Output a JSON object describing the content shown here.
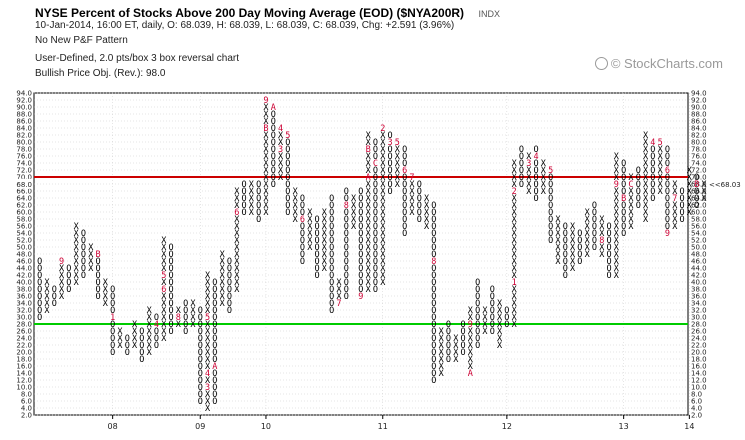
{
  "header": {
    "title": "NYSE Percent of Stocks Above 200 Day Moving Average (EOD) ($NYA200R)",
    "exchange": "INDX",
    "quote_line": "10-Jan-2014, 16:00 ET, daily, O: 68.039, H: 68.039, L: 68.039, C: 68.039, Chg: +2.591 (3.96%)",
    "pattern_line": "No New P&F Pattern",
    "settings_line": "User-Defined, 2.0 pts/box 3 box reversal chart",
    "objective_line": "Bullish Price Obj. (Rev.): 98.0",
    "watermark": "© StockCharts.com"
  },
  "colors": {
    "x_mark": "#000000",
    "o_mark": "#000000",
    "month_mark": "#cc0033",
    "overbought_line": "#cc0000",
    "oversold_line": "#00cc00",
    "grid": "#cccccc"
  },
  "chart_data": {
    "type": "point-and-figure",
    "box_size": 2.0,
    "reversal": 3,
    "ylim": [
      2,
      94
    ],
    "y_ticks": [
      2,
      4,
      6,
      8,
      10,
      12,
      14,
      16,
      18,
      20,
      22,
      24,
      26,
      28,
      30,
      32,
      34,
      36,
      38,
      40,
      42,
      44,
      46,
      48,
      50,
      52,
      54,
      56,
      58,
      60,
      62,
      64,
      66,
      68,
      70,
      72,
      74,
      76,
      78,
      80,
      82,
      84,
      86,
      88,
      90,
      92,
      94
    ],
    "x_tick_labels": [
      {
        "label": "08",
        "column": 10
      },
      {
        "label": "09",
        "column": 22
      },
      {
        "label": "10",
        "column": 31
      },
      {
        "label": "11",
        "column": 47
      },
      {
        "label": "12",
        "column": 64
      },
      {
        "label": "13",
        "column": 80
      },
      {
        "label": "14",
        "column": 89
      }
    ],
    "reference_lines": [
      {
        "name": "overbought",
        "value": 70
      },
      {
        "name": "oversold",
        "value": 28
      }
    ],
    "last_price": 68.039,
    "last_price_label": "68.0",
    "last_price_marker": "<<68.03",
    "columns": [
      {
        "type": "O",
        "high": 46,
        "low": 30
      },
      {
        "type": "X",
        "high": 40,
        "low": 32
      },
      {
        "type": "O",
        "high": 38,
        "low": 34
      },
      {
        "type": "X",
        "high": 46,
        "low": 36,
        "months": [
          {
            "value": 46,
            "label": "9"
          }
        ]
      },
      {
        "type": "O",
        "high": 44,
        "low": 38
      },
      {
        "type": "X",
        "high": 56,
        "low": 40
      },
      {
        "type": "O",
        "high": 54,
        "low": 42
      },
      {
        "type": "X",
        "high": 50,
        "low": 44
      },
      {
        "type": "O",
        "high": 48,
        "low": 36,
        "months": [
          {
            "value": 48,
            "label": "B"
          }
        ]
      },
      {
        "type": "X",
        "high": 40,
        "low": 34
      },
      {
        "type": "O",
        "high": 38,
        "low": 20,
        "months": [
          {
            "value": 30,
            "label": "1"
          }
        ]
      },
      {
        "type": "X",
        "high": 26,
        "low": 22
      },
      {
        "type": "O",
        "high": 24,
        "low": 20
      },
      {
        "type": "X",
        "high": 28,
        "low": 22
      },
      {
        "type": "O",
        "high": 26,
        "low": 18
      },
      {
        "type": "X",
        "high": 32,
        "low": 20
      },
      {
        "type": "O",
        "high": 30,
        "low": 22,
        "months": [
          {
            "value": 28,
            "label": "4"
          }
        ]
      },
      {
        "type": "X",
        "high": 52,
        "low": 24,
        "months": [
          {
            "value": 42,
            "label": "5"
          },
          {
            "value": 38,
            "label": "6"
          }
        ]
      },
      {
        "type": "O",
        "high": 50,
        "low": 26
      },
      {
        "type": "X",
        "high": 32,
        "low": 28,
        "months": [
          {
            "value": 30,
            "label": "8"
          }
        ]
      },
      {
        "type": "O",
        "high": 34,
        "low": 26
      },
      {
        "type": "X",
        "high": 34,
        "low": 28
      },
      {
        "type": "O",
        "high": 32,
        "low": 6
      },
      {
        "type": "X",
        "high": 42,
        "low": 4,
        "months": [
          {
            "value": 10,
            "label": "3"
          },
          {
            "value": 14,
            "label": "4"
          },
          {
            "value": 30,
            "label": "5"
          }
        ]
      },
      {
        "type": "O",
        "high": 40,
        "low": 6,
        "months": [
          {
            "value": 16,
            "label": "A"
          }
        ]
      },
      {
        "type": "X",
        "high": 48,
        "low": 34
      },
      {
        "type": "O",
        "high": 46,
        "low": 32
      },
      {
        "type": "X",
        "high": 66,
        "low": 38,
        "months": [
          {
            "value": 60,
            "label": "6"
          }
        ]
      },
      {
        "type": "O",
        "high": 68,
        "low": 60,
        "months": [
          {
            "value": 70,
            "label": "7"
          }
        ]
      },
      {
        "type": "X",
        "high": 68,
        "low": 60
      },
      {
        "type": "O",
        "high": 68,
        "low": 58
      },
      {
        "type": "X",
        "high": 92,
        "low": 60,
        "months": [
          {
            "value": 92,
            "label": "9"
          },
          {
            "value": 84,
            "label": "B"
          }
        ]
      },
      {
        "type": "O",
        "high": 90,
        "low": 68,
        "months": [
          {
            "value": 90,
            "label": "A"
          }
        ]
      },
      {
        "type": "X",
        "high": 84,
        "low": 70,
        "months": [
          {
            "value": 84,
            "label": "4"
          },
          {
            "value": 78,
            "label": "3"
          }
        ]
      },
      {
        "type": "O",
        "high": 82,
        "low": 60,
        "months": [
          {
            "value": 82,
            "label": "5"
          }
        ]
      },
      {
        "type": "X",
        "high": 66,
        "low": 58
      },
      {
        "type": "O",
        "high": 64,
        "low": 46,
        "months": [
          {
            "value": 58,
            "label": "6"
          }
        ]
      },
      {
        "type": "X",
        "high": 60,
        "low": 50
      },
      {
        "type": "O",
        "high": 58,
        "low": 42
      },
      {
        "type": "X",
        "high": 60,
        "low": 44
      },
      {
        "type": "O",
        "high": 64,
        "low": 32
      },
      {
        "type": "X",
        "high": 40,
        "low": 34,
        "months": [
          {
            "value": 34,
            "label": "7"
          }
        ]
      },
      {
        "type": "O",
        "high": 66,
        "low": 36,
        "months": [
          {
            "value": 62,
            "label": "8"
          }
        ]
      },
      {
        "type": "X",
        "high": 64,
        "low": 56
      },
      {
        "type": "O",
        "high": 66,
        "low": 36,
        "months": [
          {
            "value": 36,
            "label": "9"
          }
        ]
      },
      {
        "type": "X",
        "high": 82,
        "low": 38,
        "months": [
          {
            "value": 78,
            "label": "B"
          },
          {
            "value": 70,
            "label": "A"
          }
        ]
      },
      {
        "type": "O",
        "high": 80,
        "low": 38,
        "months": [
          {
            "value": 74,
            "label": "C"
          }
        ]
      },
      {
        "type": "X",
        "high": 84,
        "low": 40,
        "months": [
          {
            "value": 84,
            "label": "2"
          }
        ]
      },
      {
        "type": "O",
        "high": 82,
        "low": 66,
        "months": [
          {
            "value": 80,
            "label": "3"
          }
        ]
      },
      {
        "type": "X",
        "high": 80,
        "low": 68,
        "months": [
          {
            "value": 80,
            "label": "5"
          }
        ]
      },
      {
        "type": "O",
        "high": 78,
        "low": 54,
        "months": [
          {
            "value": 72,
            "label": "6"
          }
        ]
      },
      {
        "type": "X",
        "high": 70,
        "low": 60,
        "months": [
          {
            "value": 70,
            "label": "7"
          }
        ]
      },
      {
        "type": "O",
        "high": 68,
        "low": 58
      },
      {
        "type": "X",
        "high": 64,
        "low": 56
      },
      {
        "type": "O",
        "high": 62,
        "low": 12,
        "months": [
          {
            "value": 46,
            "label": "8"
          }
        ]
      },
      {
        "type": "X",
        "high": 26,
        "low": 14
      },
      {
        "type": "O",
        "high": 28,
        "low": 18
      },
      {
        "type": "X",
        "high": 24,
        "low": 18
      },
      {
        "type": "O",
        "high": 28,
        "low": 20
      },
      {
        "type": "X",
        "high": 32,
        "low": 14,
        "months": [
          {
            "value": 28,
            "label": "9"
          },
          {
            "value": 14,
            "label": "A"
          }
        ]
      },
      {
        "type": "O",
        "high": 40,
        "low": 22
      },
      {
        "type": "X",
        "high": 32,
        "low": 26
      },
      {
        "type": "O",
        "high": 38,
        "low": 26
      },
      {
        "type": "X",
        "high": 34,
        "low": 22
      },
      {
        "type": "O",
        "high": 32,
        "low": 28
      },
      {
        "type": "X",
        "high": 74,
        "low": 28,
        "months": [
          {
            "value": 40,
            "label": "1"
          },
          {
            "value": 66,
            "label": "2"
          }
        ]
      },
      {
        "type": "O",
        "high": 78,
        "low": 68
      },
      {
        "type": "X",
        "high": 76,
        "low": 66,
        "months": [
          {
            "value": 74,
            "label": "3"
          }
        ]
      },
      {
        "type": "O",
        "high": 78,
        "low": 64,
        "months": [
          {
            "value": 76,
            "label": "4"
          }
        ]
      },
      {
        "type": "X",
        "high": 74,
        "low": 66
      },
      {
        "type": "O",
        "high": 72,
        "low": 52,
        "months": [
          {
            "value": 72,
            "label": "5"
          }
        ]
      },
      {
        "type": "X",
        "high": 58,
        "low": 46
      },
      {
        "type": "O",
        "high": 56,
        "low": 42
      },
      {
        "type": "X",
        "high": 56,
        "low": 44
      },
      {
        "type": "O",
        "high": 54,
        "low": 46
      },
      {
        "type": "X",
        "high": 60,
        "low": 48
      },
      {
        "type": "O",
        "high": 62,
        "low": 50
      },
      {
        "type": "X",
        "high": 58,
        "low": 48,
        "months": [
          {
            "value": 52,
            "label": "8"
          }
        ]
      },
      {
        "type": "O",
        "high": 56,
        "low": 42
      },
      {
        "type": "X",
        "high": 76,
        "low": 42,
        "months": [
          {
            "value": 68,
            "label": "9"
          }
        ]
      },
      {
        "type": "O",
        "high": 74,
        "low": 54,
        "months": [
          {
            "value": 64,
            "label": "B"
          }
        ]
      },
      {
        "type": "X",
        "high": 70,
        "low": 56,
        "months": [
          {
            "value": 68,
            "label": "C"
          }
        ]
      },
      {
        "type": "O",
        "high": 72,
        "low": 62
      },
      {
        "type": "X",
        "high": 82,
        "low": 58
      },
      {
        "type": "O",
        "high": 80,
        "low": 64,
        "months": [
          {
            "value": 80,
            "label": "4"
          }
        ]
      },
      {
        "type": "X",
        "high": 80,
        "low": 66,
        "months": [
          {
            "value": 80,
            "label": "5"
          }
        ]
      },
      {
        "type": "O",
        "high": 78,
        "low": 54,
        "months": [
          {
            "value": 72,
            "label": "6"
          },
          {
            "value": 54,
            "label": "9"
          }
        ]
      },
      {
        "type": "X",
        "high": 68,
        "low": 56,
        "months": [
          {
            "value": 64,
            "label": "7"
          }
        ]
      },
      {
        "type": "O",
        "high": 66,
        "low": 58
      },
      {
        "type": "X",
        "high": 72,
        "low": 60
      },
      {
        "type": "O",
        "high": 70,
        "low": 62,
        "months": [
          {
            "value": 68,
            "label": "B"
          }
        ]
      },
      {
        "type": "X",
        "high": 68,
        "low": 64
      }
    ]
  }
}
